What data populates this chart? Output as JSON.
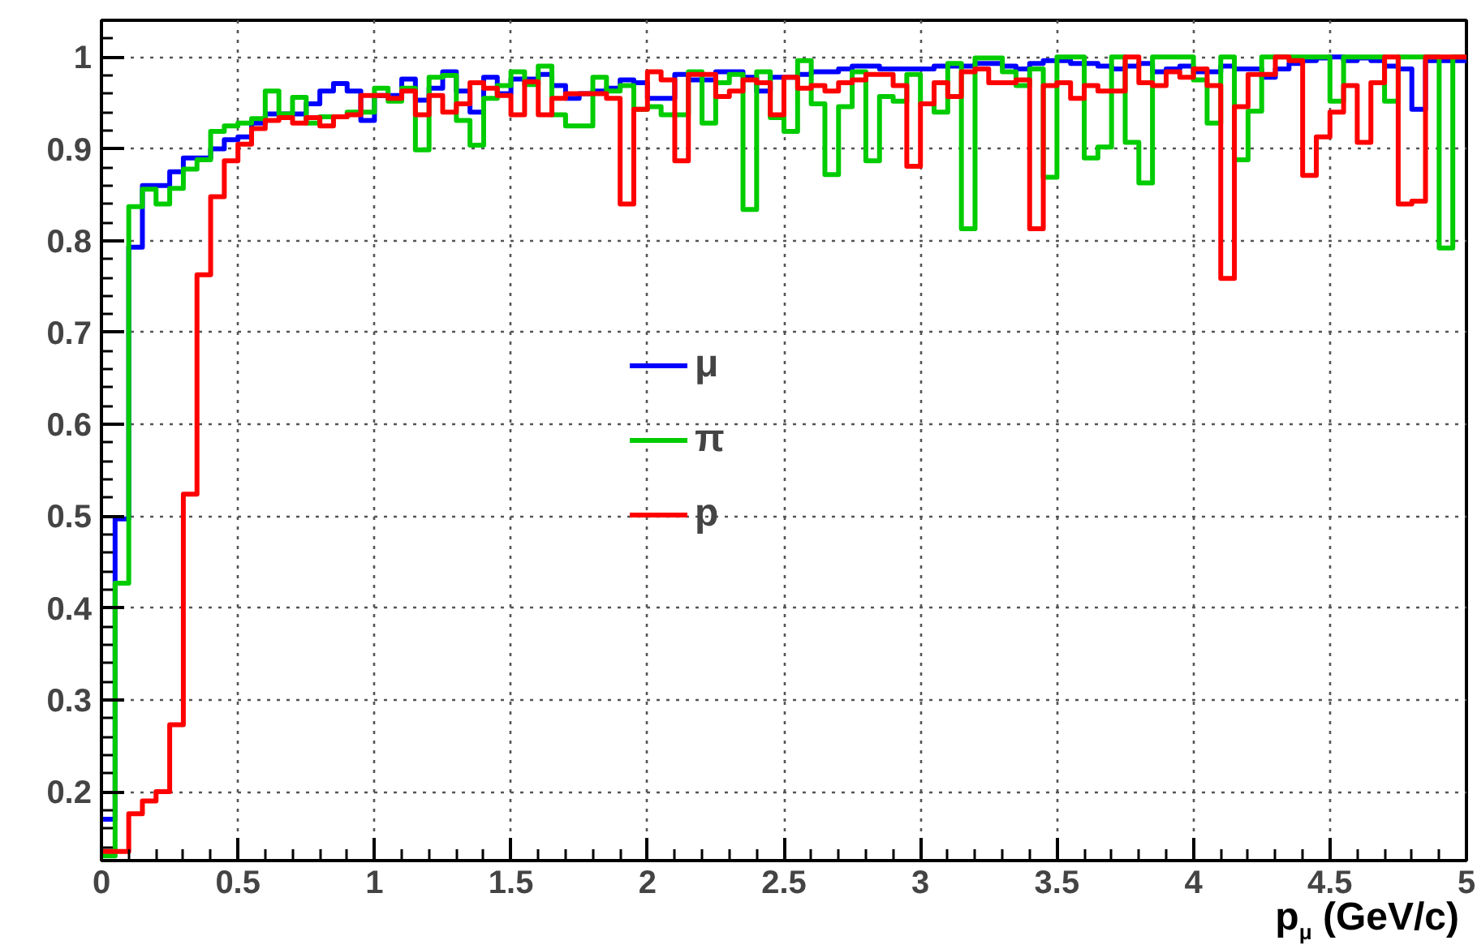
{
  "chart_data": {
    "type": "histogram",
    "xlabel": "p$_{μ}$ (GeV/c)",
    "bins": [
      0,
      0.05,
      0.1,
      0.15,
      0.2,
      0.25,
      0.3,
      0.35,
      0.4,
      0.45,
      0.5,
      0.55,
      0.6,
      0.65,
      0.7,
      0.75,
      0.8,
      0.85,
      0.9,
      0.95,
      1,
      1.05,
      1.1,
      1.15,
      1.2,
      1.25,
      1.3,
      1.35,
      1.4,
      1.45,
      1.5,
      1.55,
      1.6,
      1.65,
      1.7,
      1.75,
      1.8,
      1.85,
      1.9,
      1.95,
      2,
      2.05,
      2.1,
      2.15,
      2.2,
      2.25,
      2.3,
      2.35,
      2.4,
      2.45,
      2.5,
      2.55,
      2.6,
      2.65,
      2.7,
      2.75,
      2.8,
      2.85,
      2.9,
      2.95,
      3,
      3.05,
      3.1,
      3.15,
      3.2,
      3.25,
      3.3,
      3.35,
      3.4,
      3.45,
      3.5,
      3.55,
      3.6,
      3.65,
      3.7,
      3.75,
      3.8,
      3.85,
      3.9,
      3.95,
      4,
      4.05,
      4.1,
      4.15,
      4.2,
      4.25,
      4.3,
      4.35,
      4.4,
      4.45,
      4.5,
      4.55,
      4.6,
      4.65,
      4.7,
      4.75,
      4.8,
      4.85,
      4.9,
      4.95,
      5
    ],
    "series": [
      {
        "name": "μ",
        "color": "#0000ff",
        "values": [
          0.17,
          0.497,
          0.793,
          0.86,
          0.86,
          0.875,
          0.89,
          0.89,
          0.9,
          0.91,
          0.913,
          0.928,
          0.938,
          0.938,
          0.938,
          0.949,
          0.963,
          0.971,
          0.963,
          0.931,
          0.958,
          0.958,
          0.976,
          0.953,
          0.966,
          0.984,
          0.963,
          0.94,
          0.978,
          0.96,
          0.976,
          0.976,
          0.981,
          0.969,
          0.955,
          0.96,
          0.963,
          0.966,
          0.975,
          0.972,
          0.955,
          0.955,
          0.981,
          0.975,
          0.975,
          0.984,
          0.984,
          0.978,
          0.963,
          0.978,
          0.978,
          0.981,
          0.984,
          0.984,
          0.987,
          0.99,
          0.99,
          0.987,
          0.987,
          0.987,
          0.987,
          0.99,
          0.99,
          0.99,
          0.993,
          0.993,
          0.99,
          0.987,
          0.993,
          0.996,
          0.996,
          0.993,
          0.993,
          0.99,
          0.987,
          0.99,
          0.993,
          0.984,
          0.987,
          0.99,
          0.984,
          0.984,
          0.99,
          0.987,
          0.987,
          0.978,
          0.987,
          0.993,
          0.996,
          0.999,
          1.0,
          0.996,
          0.999,
          0.996,
          0.99,
          0.987,
          0.943,
          0.996,
          0.996,
          0.996
        ]
      },
      {
        "name": "π",
        "color": "#00cc00",
        "values": [
          0.13,
          0.427,
          0.837,
          0.856,
          0.84,
          0.857,
          0.878,
          0.888,
          0.919,
          0.925,
          0.928,
          0.933,
          0.963,
          0.938,
          0.956,
          0.928,
          0.935,
          0.935,
          0.94,
          0.94,
          0.966,
          0.952,
          0.966,
          0.899,
          0.978,
          0.98,
          0.931,
          0.904,
          0.955,
          0.969,
          0.984,
          0.97,
          0.99,
          0.937,
          0.925,
          0.925,
          0.978,
          0.963,
          0.969,
          0.943,
          0.946,
          0.937,
          0.937,
          0.984,
          0.928,
          0.972,
          0.981,
          0.834,
          0.984,
          0.934,
          0.919,
          0.996,
          0.949,
          0.872,
          0.946,
          0.984,
          0.887,
          0.957,
          0.952,
          0.981,
          0.949,
          0.94,
          0.993,
          0.813,
          0.999,
          0.999,
          0.984,
          0.969,
          0.987,
          0.869,
          1.0,
          1.0,
          0.89,
          0.902,
          1.0,
          0.907,
          0.863,
          1.0,
          1.0,
          1.0,
          0.975,
          0.928,
          1.0,
          0.888,
          0.941,
          1.0,
          1.0,
          1.0,
          1.0,
          1.0,
          0.952,
          1.0,
          1.0,
          1.0,
          0.952,
          1.0,
          1.0,
          1.0,
          0.792,
          1.0
        ]
      },
      {
        "name": "p",
        "color": "#ff0000",
        "values": [
          0.135,
          0.135,
          0.176,
          0.19,
          0.2,
          0.273,
          0.524,
          0.763,
          0.848,
          0.887,
          0.905,
          0.922,
          0.931,
          0.934,
          0.928,
          0.934,
          0.925,
          0.935,
          0.937,
          0.958,
          0.958,
          0.955,
          0.963,
          0.937,
          0.958,
          0.94,
          0.949,
          0.972,
          0.966,
          0.958,
          0.937,
          0.973,
          0.937,
          0.955,
          0.96,
          0.96,
          0.96,
          0.955,
          0.84,
          0.943,
          0.984,
          0.975,
          0.887,
          0.981,
          0.981,
          0.957,
          0.963,
          0.975,
          0.972,
          0.937,
          0.978,
          0.966,
          0.969,
          0.963,
          0.972,
          0.975,
          0.981,
          0.981,
          0.969,
          0.881,
          0.949,
          0.972,
          0.957,
          0.984,
          0.987,
          0.972,
          0.972,
          0.975,
          0.813,
          0.969,
          0.972,
          0.955,
          0.969,
          0.963,
          0.963,
          1.0,
          0.972,
          0.969,
          0.984,
          0.978,
          0.987,
          0.969,
          0.759,
          0.946,
          0.981,
          0.981,
          1.0,
          0.996,
          0.871,
          0.913,
          0.94,
          0.969,
          0.907,
          0.972,
          1.0,
          0.84,
          0.843,
          1.0,
          1.0,
          1.0
        ]
      }
    ],
    "xlim": [
      0,
      5
    ],
    "ylim": [
      0.125,
      1.04
    ],
    "xticks": [
      0,
      0.5,
      1,
      1.5,
      2,
      2.5,
      3,
      3.5,
      4,
      4.5,
      5
    ],
    "yticks": [
      0.2,
      0.3,
      0.4,
      0.5,
      0.6,
      0.7,
      0.8,
      0.9,
      1
    ],
    "grid": true,
    "legend": "center"
  }
}
